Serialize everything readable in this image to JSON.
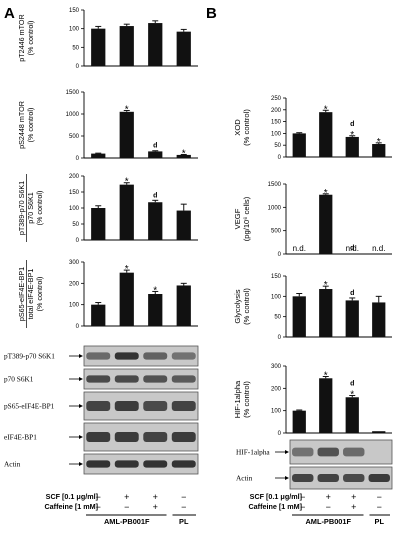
{
  "panels": {
    "A": "A",
    "B": "B"
  },
  "colors": {
    "bar": "#111111",
    "axis": "#000000",
    "blot_bg": "#c8c8c8",
    "band": "#2b2b2b"
  },
  "charts": [
    {
      "id": "a1",
      "type": "bar",
      "column": "A",
      "ylabel": [
        "pT2446 mTOR",
        "(% control)"
      ],
      "ylim": [
        0,
        150
      ],
      "ticks": [
        0,
        50,
        100,
        150
      ],
      "values": [
        100,
        107,
        115,
        92
      ],
      "errors": [
        6,
        5,
        6,
        6
      ],
      "stars": [
        "",
        "",
        "",
        ""
      ],
      "dmarks": [
        "",
        "",
        "",
        ""
      ],
      "nd": [
        "",
        "",
        "",
        ""
      ]
    },
    {
      "id": "a2",
      "type": "bar",
      "column": "A",
      "ylabel": [
        "pS2448 mTOR",
        "(% control)"
      ],
      "ylim": [
        0,
        1500
      ],
      "ticks": [
        0,
        500,
        1000,
        1500
      ],
      "values": [
        100,
        1050,
        150,
        70
      ],
      "errors": [
        10,
        30,
        15,
        10
      ],
      "stars": [
        "",
        "*",
        "",
        "*"
      ],
      "dmarks": [
        "",
        "",
        "d",
        ""
      ],
      "nd": [
        "",
        "",
        "",
        ""
      ]
    },
    {
      "id": "a3",
      "type": "bar",
      "column": "A",
      "ylabel": [
        "pT389-p70 S6K1",
        "p70 S6K1",
        "(% control)"
      ],
      "ylim": [
        0,
        200
      ],
      "ticks": [
        0,
        50,
        100,
        150,
        200
      ],
      "values": [
        100,
        173,
        118,
        92
      ],
      "errors": [
        7,
        6,
        6,
        20
      ],
      "stars": [
        "",
        "*",
        "",
        ""
      ],
      "dmarks": [
        "",
        "",
        "d",
        ""
      ],
      "nd": [
        "",
        "",
        "",
        ""
      ]
    },
    {
      "id": "a4",
      "type": "bar",
      "column": "A",
      "ylabel": [
        "pS65-eIF4E-BP1",
        "total eIF4E-BP1",
        "(% control)"
      ],
      "ylim": [
        0,
        300
      ],
      "ticks": [
        0,
        100,
        200,
        300
      ],
      "values": [
        100,
        250,
        150,
        190
      ],
      "errors": [
        10,
        12,
        12,
        10
      ],
      "stars": [
        "",
        "*",
        "*",
        ""
      ],
      "dmarks": [
        "",
        "",
        "",
        ""
      ],
      "nd": [
        "",
        "",
        "",
        ""
      ]
    },
    {
      "id": "b1",
      "type": "bar",
      "column": "B",
      "ylabel": [
        "XOD",
        "(% control)"
      ],
      "ylim": [
        0,
        250
      ],
      "ticks": [
        0,
        50,
        100,
        150,
        200,
        250
      ],
      "values": [
        100,
        190,
        85,
        55
      ],
      "errors": [
        3,
        8,
        5,
        5
      ],
      "stars": [
        "",
        "*",
        "*",
        "*"
      ],
      "dmarks": [
        "",
        "",
        "d",
        ""
      ],
      "nd": [
        "",
        "",
        "",
        ""
      ]
    },
    {
      "id": "b2",
      "type": "bar",
      "column": "B",
      "ylabel": [
        "VEGF",
        "(pg/10⁶ cells)"
      ],
      "ylim": [
        0,
        1500
      ],
      "ticks": [
        0,
        500,
        1000,
        1500
      ],
      "values": [
        0,
        1270,
        0,
        0
      ],
      "errors": [
        0,
        20,
        0,
        0
      ],
      "stars": [
        "",
        "*",
        "",
        ""
      ],
      "dmarks": [
        "",
        "",
        "d",
        ""
      ],
      "nd": [
        "n.d.",
        "",
        "n.d.",
        "n.d."
      ]
    },
    {
      "id": "b3",
      "type": "bar",
      "column": "B",
      "ylabel": [
        "Glycolysis",
        "(% control)"
      ],
      "ylim": [
        0,
        150
      ],
      "ticks": [
        0,
        50,
        100,
        150
      ],
      "values": [
        100,
        118,
        90,
        85
      ],
      "errors": [
        7,
        7,
        6,
        15
      ],
      "stars": [
        "",
        "*",
        "",
        ""
      ],
      "dmarks": [
        "",
        "",
        "d",
        ""
      ],
      "nd": [
        "",
        "",
        "",
        ""
      ]
    },
    {
      "id": "b4",
      "type": "bar",
      "column": "B",
      "ylabel": [
        "HIF-1alpha",
        "(% control)"
      ],
      "ylim": [
        0,
        300
      ],
      "ticks": [
        0,
        100,
        200,
        300
      ],
      "values": [
        100,
        245,
        160,
        0
      ],
      "errors": [
        3,
        8,
        8,
        0
      ],
      "stars": [
        "",
        "*",
        "*",
        ""
      ],
      "dmarks": [
        "",
        "",
        "d",
        ""
      ],
      "nd": [
        "",
        "",
        "",
        ""
      ]
    }
  ],
  "blots_a": [
    "pT389-p70 S6K1",
    "p70 S6K1",
    "pS65-eIF4E-BP1",
    "eIF4E-BP1",
    "Actin"
  ],
  "blots_b": [
    "HIF-1alpha",
    "Actin"
  ],
  "treatments": {
    "scf_label": "SCF [0.1 μg/ml]",
    "caffeine_label": "Caffeine [1 mM]",
    "scf": [
      "−",
      "+",
      "+",
      "−"
    ],
    "caffeine": [
      "−",
      "−",
      "+",
      "−"
    ],
    "group_aml": "AML-PB001F",
    "group_pl": "PL"
  }
}
